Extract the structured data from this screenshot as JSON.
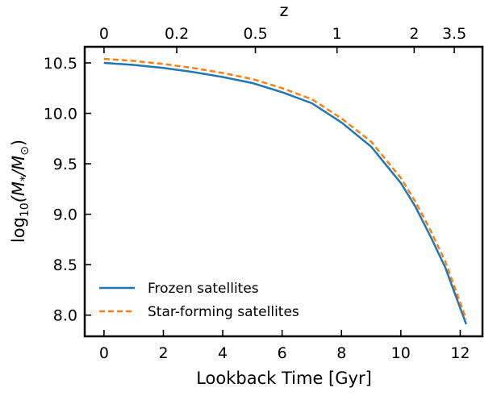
{
  "chart_data": {
    "type": "line",
    "xlabel": "Lookback Time [Gyr]",
    "ylabel_main": "log",
    "ylabel_sub": "10",
    "ylabel_expr": "(M",
    "ylabel_star": "*",
    "ylabel_mid": "/M",
    "ylabel_sun": "⊙",
    "ylabel_close": ")",
    "top_xlabel": "z",
    "xlim": [
      -0.65,
      12.75
    ],
    "ylim": [
      7.79,
      10.66
    ],
    "xticks": [
      0,
      2,
      4,
      6,
      8,
      10,
      12
    ],
    "yticks": [
      8.0,
      8.5,
      9.0,
      9.5,
      10.0,
      10.5
    ],
    "ytick_labels": [
      "8.0",
      "8.5",
      "9.0",
      "9.5",
      "10.0",
      "10.5"
    ],
    "top_ticks": [
      {
        "label": "0",
        "x": 0.0
      },
      {
        "label": "0.2",
        "x": 2.45
      },
      {
        "label": "0.5",
        "x": 5.1
      },
      {
        "label": "1",
        "x": 7.85
      },
      {
        "label": "2",
        "x": 10.45
      },
      {
        "label": "3.5",
        "x": 11.8
      }
    ],
    "legend_position": "lower-left",
    "series": [
      {
        "name": "Frozen satellites",
        "color": "#1f77b4",
        "dashed": false,
        "x": [
          0,
          1,
          2,
          3,
          4,
          5,
          6,
          7,
          8,
          9,
          10,
          10.5,
          11,
          11.5,
          12.2
        ],
        "y": [
          10.5,
          10.48,
          10.45,
          10.41,
          10.36,
          10.3,
          10.21,
          10.1,
          9.91,
          9.67,
          9.31,
          9.07,
          8.78,
          8.47,
          7.91
        ]
      },
      {
        "name": "Star-forming satellites",
        "color": "#ff7f0e",
        "dashed": true,
        "x": [
          0,
          1,
          2,
          3,
          4,
          5,
          6,
          7,
          8,
          9,
          10,
          10.5,
          11,
          11.5,
          12.2
        ],
        "y": [
          10.54,
          10.52,
          10.49,
          10.45,
          10.4,
          10.34,
          10.25,
          10.14,
          9.95,
          9.72,
          9.36,
          9.12,
          8.84,
          8.53,
          7.96
        ]
      }
    ]
  }
}
